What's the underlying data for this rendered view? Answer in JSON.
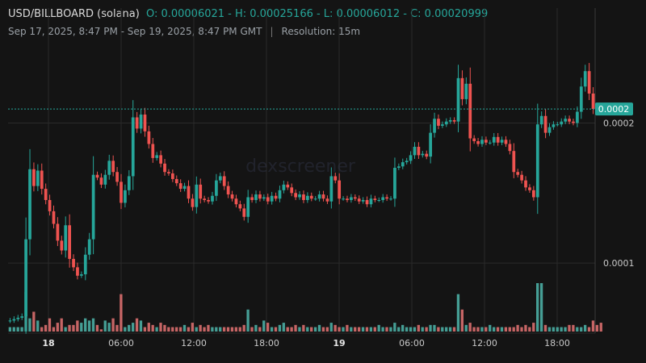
{
  "header": {
    "symbol": "USD/BILLBOARD (solana)",
    "ohlc": "O: 0.00006021 - H: 0.00025166 - L: 0.00006012 - C: 0.00020999",
    "range": "Sep 17, 2025, 8:47 PM - Sep 19, 2025, 8:47 PM GMT",
    "separator": "|",
    "resolution": "Resolution: 15m"
  },
  "watermark": "dexscreener",
  "colors": {
    "background": "#141414",
    "up": "#26a69a",
    "down": "#ef5350",
    "up_volume": "#4db6ac",
    "down_volume": "#e57373",
    "grid": "#2a2a2a"
  },
  "chart_data": {
    "type": "candlestick",
    "y_axis": {
      "ticks": [
        0.0001,
        0.0002
      ],
      "tick_labels": [
        "0.0001",
        "0.0002"
      ],
      "ylim": [
        5e-05,
        0.000282
      ]
    },
    "x_axis": {
      "tick_labels": [
        "18",
        "06:00",
        "12:00",
        "18:00",
        "19",
        "06:00",
        "12:00",
        "18:00"
      ],
      "bold_labels": [
        "18",
        "19"
      ]
    },
    "last_price": {
      "label": "0.0002",
      "value": 0.00021
    },
    "close_series": [
      5.9e-05,
      6e-05,
      6.1e-05,
      6.2e-05,
      0.000117,
      0.000167,
      0.000155,
      0.000166,
      0.000153,
      0.000145,
      0.000137,
      0.000128,
      0.000116,
      0.000109,
      0.000127,
      0.000103,
      9.7e-05,
      9.1e-05,
      9.2e-05,
      0.000106,
      0.000117,
      0.000163,
      0.000161,
      0.000156,
      0.000163,
      0.000173,
      0.000165,
      0.000158,
      0.000143,
      0.000152,
      0.000162,
      0.000204,
      0.000196,
      0.000206,
      0.000194,
      0.000185,
      0.000175,
      0.000177,
      0.000171,
      0.000165,
      0.000164,
      0.00016,
      0.000157,
      0.000153,
      0.000155,
      0.000146,
      0.00014,
      0.000156,
      0.000146,
      0.000145,
      0.000144,
      0.000148,
      0.000159,
      0.000162,
      0.000155,
      0.000149,
      0.000146,
      0.000142,
      0.000139,
      0.000133,
      0.000147,
      0.000145,
      0.000149,
      0.000146,
      0.000147,
      0.000144,
      0.000148,
      0.000146,
      0.000152,
      0.000156,
      0.000154,
      0.00015,
      0.000147,
      0.000149,
      0.000145,
      0.000148,
      0.000146,
      0.000146,
      0.000149,
      0.000146,
      0.000144,
      0.000162,
      0.000159,
      0.000146,
      0.000146,
      0.000145,
      0.000147,
      0.000146,
      0.000144,
      0.000145,
      0.000142,
      0.000146,
      0.000145,
      0.000145,
      0.000147,
      0.000146,
      0.000146,
      0.000168,
      0.000169,
      0.000172,
      0.000173,
      0.000177,
      0.000183,
      0.000177,
      0.000178,
      0.000176,
      0.000193,
      0.000203,
      0.000198,
      0.000199,
      0.000201,
      0.000202,
      0.000201,
      0.000232,
      0.000217,
      0.000228,
      0.000189,
      0.000187,
      0.000185,
      0.000188,
      0.000186,
      0.000186,
      0.00019,
      0.000186,
      0.000188,
      0.000185,
      0.00018,
      0.000165,
      0.000163,
      0.000159,
      0.000154,
      0.000152,
      0.000147,
      0.000199,
      0.000205,
      0.000193,
      0.000197,
      0.000199,
      0.000199,
      0.000201,
      0.000203,
      0.000201,
      0.0002,
      0.000208,
      0.000226,
      0.000237,
      0.000221,
      0.00021
    ],
    "volume_series": [
      2,
      2,
      2,
      2,
      18,
      6,
      9,
      5,
      2,
      3,
      6,
      2,
      4,
      6,
      2,
      3,
      3,
      5,
      4,
      6,
      5,
      6,
      3,
      1,
      5,
      4,
      6,
      3,
      17,
      2,
      3,
      4,
      6,
      5,
      2,
      4,
      3,
      2,
      4,
      3,
      2,
      2,
      2,
      2,
      3,
      2,
      4,
      2,
      3,
      2,
      3,
      2,
      2,
      2,
      2,
      2,
      2,
      2,
      2,
      3,
      10,
      2,
      3,
      2,
      5,
      4,
      2,
      2,
      3,
      4,
      2,
      2,
      3,
      2,
      3,
      2,
      2,
      2,
      3,
      2,
      2,
      4,
      3,
      2,
      2,
      3,
      2,
      2,
      2,
      2,
      2,
      2,
      2,
      3,
      2,
      2,
      2,
      4,
      2,
      3,
      2,
      2,
      2,
      3,
      2,
      2,
      3,
      3,
      2,
      2,
      2,
      2,
      2,
      17,
      10,
      3,
      4,
      2,
      2,
      2,
      2,
      3,
      2,
      2,
      2,
      2,
      2,
      2,
      3,
      2,
      3,
      2,
      4,
      22,
      22,
      3,
      2,
      2,
      2,
      2,
      2,
      3,
      3,
      2,
      2,
      3,
      2,
      5,
      3,
      4
    ]
  }
}
